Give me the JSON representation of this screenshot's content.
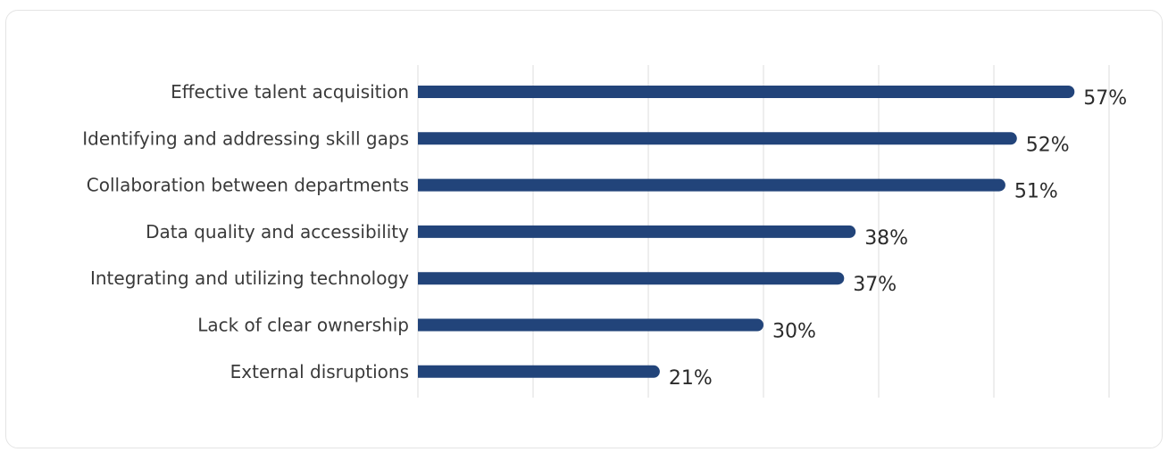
{
  "chart_data": {
    "type": "bar",
    "orientation": "horizontal",
    "title": "",
    "xlabel": "",
    "ylabel": "",
    "categories": [
      "Effective talent acquisition",
      "Identifying and addressing skill gaps",
      "Collaboration between departments",
      "Data quality and accessibility",
      "Integrating and utilizing technology",
      "Lack of clear ownership",
      "External disruptions"
    ],
    "values": [
      57,
      52,
      51,
      38,
      37,
      30,
      21
    ],
    "value_labels": [
      "57%",
      "52%",
      "51%",
      "38%",
      "37%",
      "30%",
      "21%"
    ],
    "xlim": [
      0,
      60
    ],
    "grid": true,
    "legend": "none",
    "bar_color": "#22447a",
    "grid_color": "#dcdcdc"
  }
}
